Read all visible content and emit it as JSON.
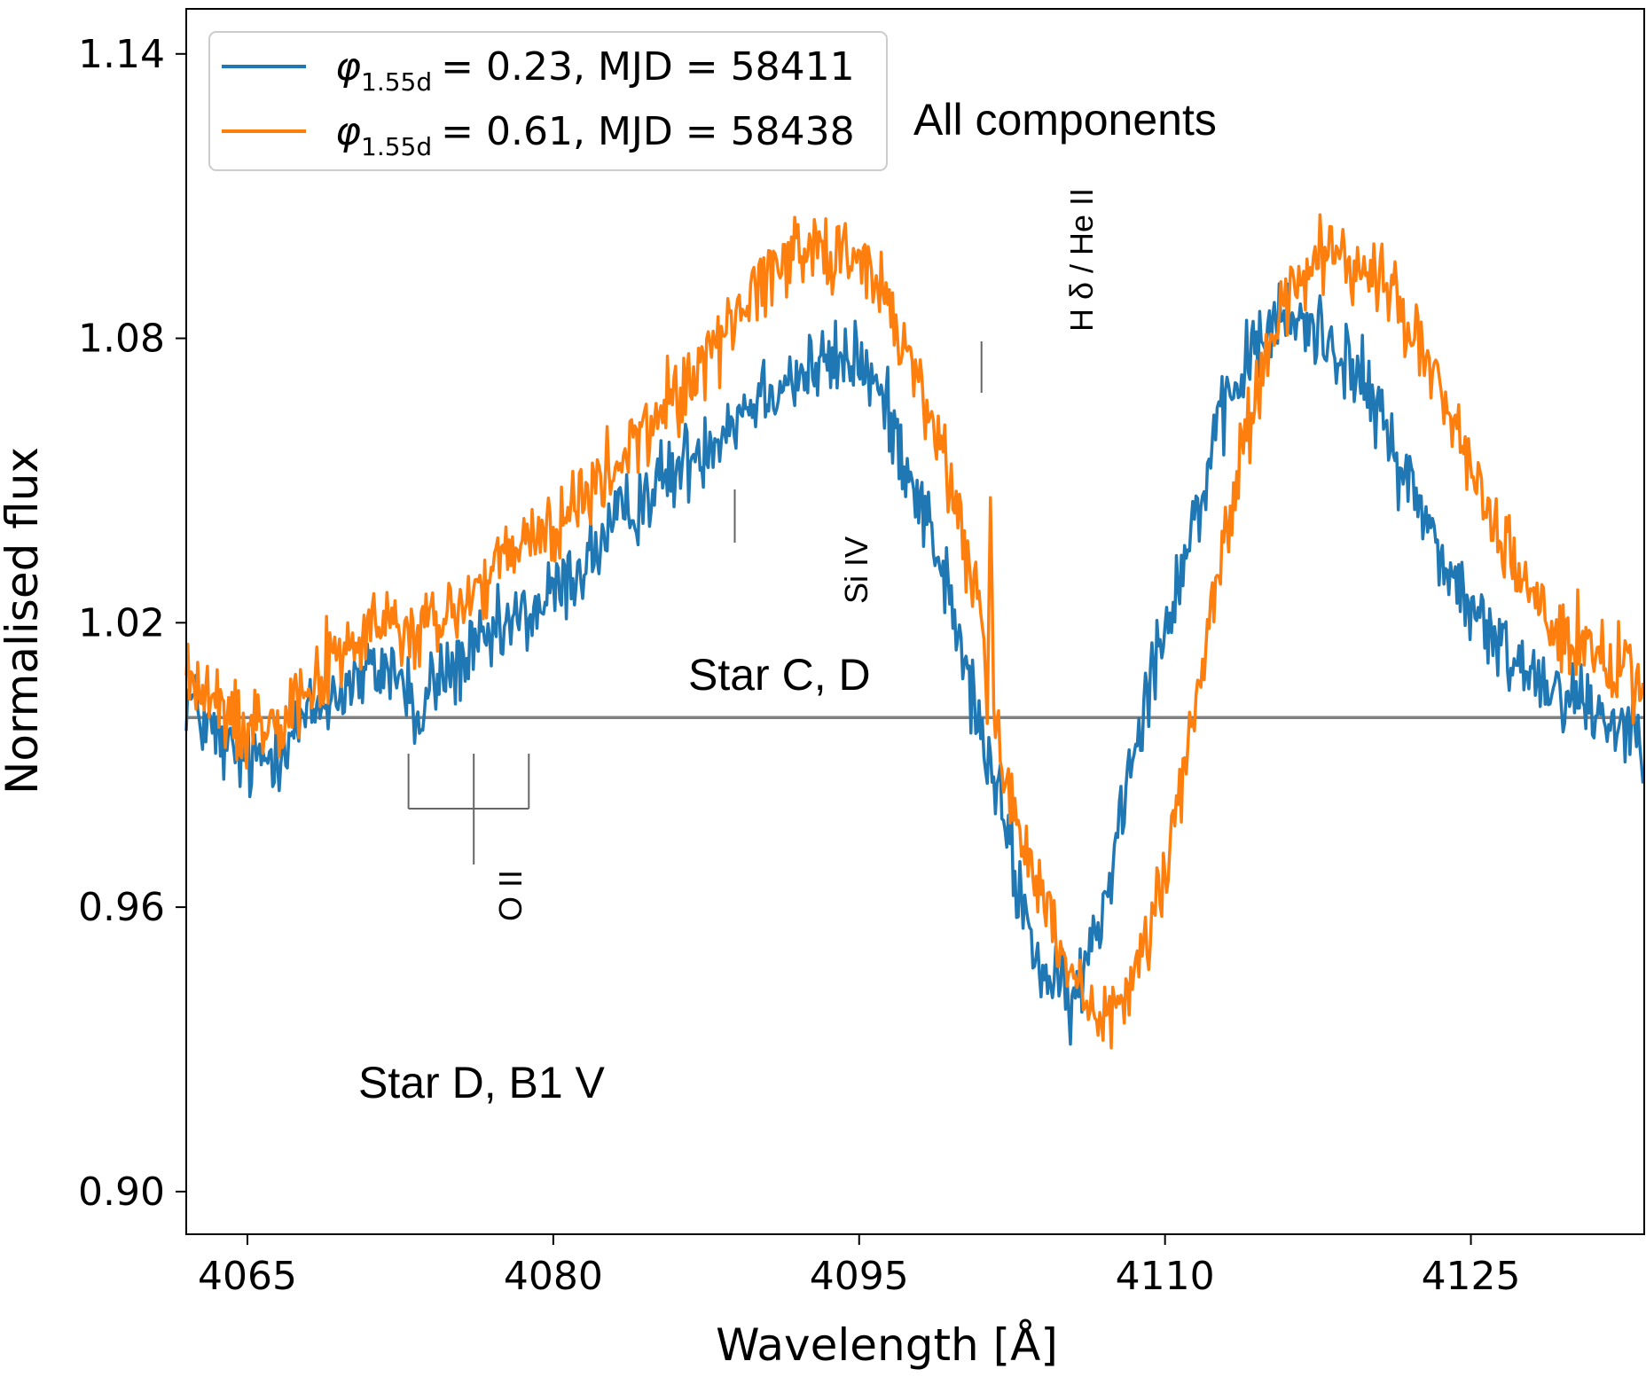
{
  "chart_data": {
    "type": "line",
    "xlabel": "Wavelength [Å]",
    "ylabel": "Normalised flux",
    "xlim": [
      4062,
      4133.5
    ],
    "ylim": [
      0.891,
      1.1495
    ],
    "xticks": [
      4065,
      4080,
      4095,
      4110,
      4125
    ],
    "yticks": [
      0.9,
      0.96,
      1.02,
      1.08,
      1.14
    ],
    "ytick_labels": [
      "0.90",
      "0.96",
      "1.02",
      "1.08",
      "1.14"
    ],
    "grid": false,
    "legend_position": "top-left",
    "reference_line": {
      "y": 1.0,
      "color": "#808080"
    },
    "series": [
      {
        "name": "φ1.55d = 0.23, MJD = 58411",
        "legend_phase_value": "= 0.23, MJD = 58411",
        "color": "#1f77b4",
        "x": [
          4062,
          4063,
          4064,
          4065,
          4066,
          4067,
          4068,
          4069,
          4070,
          4071,
          4072,
          4073,
          4073.4,
          4074,
          4075,
          4076,
          4077,
          4078,
          4079,
          4080,
          4081,
          4082,
          4083,
          4084,
          4085,
          4086,
          4087,
          4088,
          4089,
          4090,
          4091,
          4092,
          4093,
          4094,
          4095,
          4096,
          4097,
          4098,
          4099,
          4100,
          4101,
          4102,
          4103,
          4104,
          4105,
          4105.5,
          4106,
          4107,
          4108,
          4109,
          4110,
          4111,
          4112,
          4113,
          4114,
          4115,
          4116,
          4117,
          4118,
          4119,
          4120,
          4121,
          4122,
          4123,
          4124,
          4125,
          4126,
          4127,
          4128,
          4129,
          4130,
          4131,
          4132,
          4133,
          4133.5
        ],
        "y": [
          1.005,
          0.998,
          0.993,
          0.99,
          0.992,
          0.996,
          1.0,
          1.004,
          1.007,
          1.009,
          1.011,
          1.005,
          0.996,
          1.007,
          1.01,
          1.013,
          1.016,
          1.02,
          1.022,
          1.026,
          1.03,
          1.035,
          1.04,
          1.045,
          1.049,
          1.052,
          1.056,
          1.06,
          1.064,
          1.068,
          1.071,
          1.072,
          1.074,
          1.075,
          1.076,
          1.068,
          1.058,
          1.046,
          1.033,
          1.014,
          0.996,
          0.98,
          0.96,
          0.946,
          0.941,
          0.94,
          0.946,
          0.96,
          0.985,
          1.005,
          1.02,
          1.035,
          1.05,
          1.065,
          1.075,
          1.082,
          1.084,
          1.083,
          1.08,
          1.075,
          1.068,
          1.059,
          1.049,
          1.04,
          1.03,
          1.023,
          1.016,
          1.013,
          1.01,
          1.007,
          1.005,
          1.002,
          0.999,
          0.998,
          0.997
        ]
      },
      {
        "name": "φ1.55d = 0.61, MJD = 58438",
        "legend_phase_value": "= 0.61, MJD = 58438",
        "color": "#ff7f0e",
        "x": [
          4062,
          4063,
          4064,
          4065,
          4066,
          4067,
          4068,
          4069,
          4070,
          4071,
          4072,
          4073,
          4074,
          4075,
          4076,
          4077,
          4078,
          4079,
          4080,
          4081,
          4082,
          4083,
          4084,
          4085,
          4086,
          4087,
          4088,
          4089,
          4090,
          4091,
          4092,
          4093,
          4094,
          4095,
          4096,
          4097,
          4098,
          4099,
          4100,
          4101,
          4101.3,
          4101.45,
          4101.6,
          4102,
          4103,
          4104,
          4105,
          4106,
          4106.5,
          4107,
          4108,
          4109,
          4110,
          4111,
          4112,
          4113,
          4114,
          4115,
          4116,
          4117,
          4118,
          4119,
          4120,
          4121,
          4122,
          4123,
          4124,
          4125,
          4126,
          4127,
          4128,
          4129,
          4130,
          4131,
          4132,
          4133,
          4133.5
        ],
        "y": [
          1.01,
          1.004,
          1.0,
          0.998,
          1.0,
          1.003,
          1.007,
          1.011,
          1.015,
          1.018,
          1.02,
          1.017,
          1.019,
          1.022,
          1.026,
          1.03,
          1.034,
          1.038,
          1.04,
          1.044,
          1.048,
          1.052,
          1.058,
          1.063,
          1.068,
          1.073,
          1.079,
          1.085,
          1.091,
          1.096,
          1.099,
          1.1,
          1.099,
          1.096,
          1.09,
          1.081,
          1.07,
          1.057,
          1.04,
          1.02,
          1.005,
          1.057,
          1.0,
          0.99,
          0.975,
          0.96,
          0.948,
          0.94,
          0.935,
          0.935,
          0.94,
          0.952,
          0.97,
          0.99,
          1.015,
          1.04,
          1.06,
          1.078,
          1.09,
          1.095,
          1.097,
          1.096,
          1.094,
          1.09,
          1.083,
          1.074,
          1.063,
          1.052,
          1.042,
          1.033,
          1.026,
          1.02,
          1.016,
          1.013,
          1.01,
          1.008,
          1.007
        ]
      }
    ],
    "annotations": {
      "all_components": "All components",
      "star_cd": "Star C, D",
      "star_d": "Star D, B1 V",
      "o_ii": "O II",
      "si_iv": "Si IV",
      "h_delta_he_ii": "H δ / He II"
    },
    "line_markers": {
      "o_ii_wavelengths": [
        4072.9,
        4076.1,
        4078.8
      ],
      "si_iv_wavelength": 4088.9,
      "h_delta_wavelength": 4101.0
    },
    "legend_symbol": "φ",
    "legend_subscript": "1.55d"
  }
}
